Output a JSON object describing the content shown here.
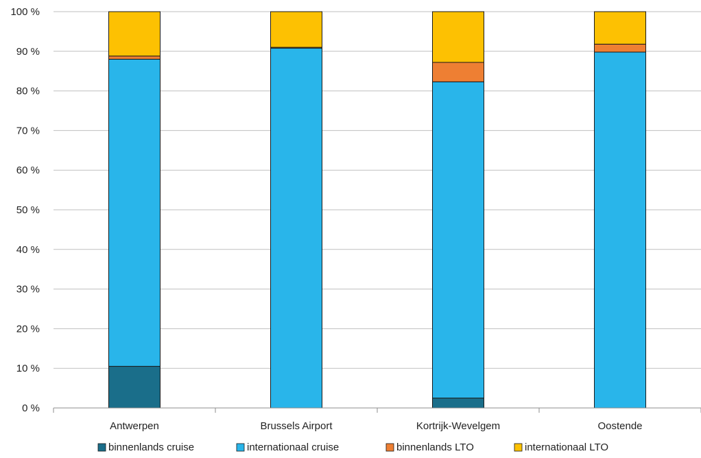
{
  "chart_data": {
    "type": "bar",
    "stacked": true,
    "title": "",
    "xlabel": "",
    "ylabel": "",
    "ylim": [
      0,
      100
    ],
    "y_ticks": [
      "0 %",
      "10 %",
      "20 %",
      "30 %",
      "40 %",
      "50 %",
      "60 %",
      "70 %",
      "80 %",
      "90 %",
      "100 %"
    ],
    "y_tick_values": [
      0,
      10,
      20,
      30,
      40,
      50,
      60,
      70,
      80,
      90,
      100
    ],
    "grid": "horizontal",
    "legend_position": "bottom",
    "categories": [
      "Antwerpen",
      "Brussels Airport",
      "Kortrijk-Wevelgem",
      "Oostende"
    ],
    "series": [
      {
        "name": "binnenlands cruise",
        "color": "#1a6e8a",
        "values": [
          10.5,
          0,
          2.5,
          0
        ]
      },
      {
        "name": "internationaal cruise",
        "color": "#29b5ea",
        "values": [
          77.5,
          90.8,
          79.8,
          89.8
        ]
      },
      {
        "name": "binnenlands LTO",
        "color": "#ee7f33",
        "values": [
          0.8,
          0.2,
          4.9,
          2.0
        ]
      },
      {
        "name": "internationaal LTO",
        "color": "#fdc102",
        "values": [
          11.2,
          9.0,
          12.8,
          8.2
        ]
      }
    ]
  }
}
